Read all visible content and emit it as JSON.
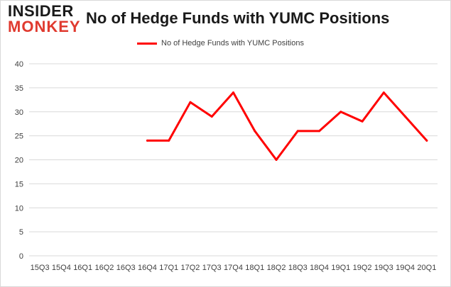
{
  "brand": {
    "logo_top": "INSIDER",
    "logo_bottom": "MONKEY"
  },
  "chart_data": {
    "type": "line",
    "title": "No of Hedge Funds with YUMC Positions",
    "categories": [
      "15Q3",
      "15Q4",
      "16Q1",
      "16Q2",
      "16Q3",
      "16Q4",
      "17Q1",
      "17Q2",
      "17Q3",
      "17Q4",
      "18Q1",
      "18Q2",
      "18Q3",
      "18Q4",
      "19Q1",
      "19Q2",
      "19Q3",
      "19Q4",
      "20Q1"
    ],
    "series": [
      {
        "name": "No of Hedge Funds with YUMC Positions",
        "color": "#ff0000",
        "values": [
          null,
          null,
          null,
          null,
          null,
          24,
          24,
          32,
          29,
          34,
          26,
          20,
          26,
          26,
          30,
          28,
          34,
          29,
          24
        ]
      }
    ],
    "y_ticks": [
      0,
      5,
      10,
      15,
      20,
      25,
      30,
      35,
      40
    ],
    "ylim": [
      0,
      40
    ],
    "grid": true,
    "legend_position": "top-center",
    "gridline_color": "#d9d9d9",
    "axis_text_color": "#404040"
  }
}
